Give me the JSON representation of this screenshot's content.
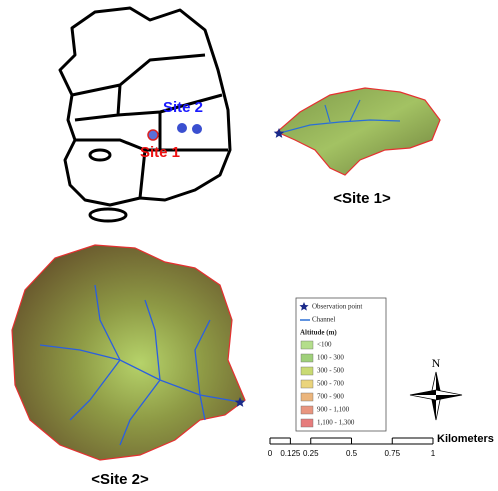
{
  "korea_map": {
    "labels": [
      "Site 2",
      "Site 1"
    ]
  },
  "sites": [
    {
      "caption": "<Site 1>"
    },
    {
      "caption": "<Site 2>"
    }
  ],
  "legend": {
    "observation_point": "Observation point",
    "channel": "Channel",
    "title": "Altitude (m)",
    "classes": [
      {
        "label": "<100",
        "color": "#b4de8c"
      },
      {
        "label": "100 - 300",
        "color": "#9fd07a"
      },
      {
        "label": "300 - 500",
        "color": "#c9da72"
      },
      {
        "label": "500 - 700",
        "color": "#ead47c"
      },
      {
        "label": "700 - 900",
        "color": "#ebb57c"
      },
      {
        "label": "900 - 1,100",
        "color": "#e8957f"
      },
      {
        "label": "1,100 - 1,300",
        "color": "#e67c7c"
      }
    ]
  },
  "north_arrow": {
    "label": "N"
  },
  "scale_bar": {
    "unit": "Kilometers",
    "ticks": [
      "0",
      "0.125",
      "0.25",
      "0.5",
      "0.75",
      "1"
    ]
  }
}
